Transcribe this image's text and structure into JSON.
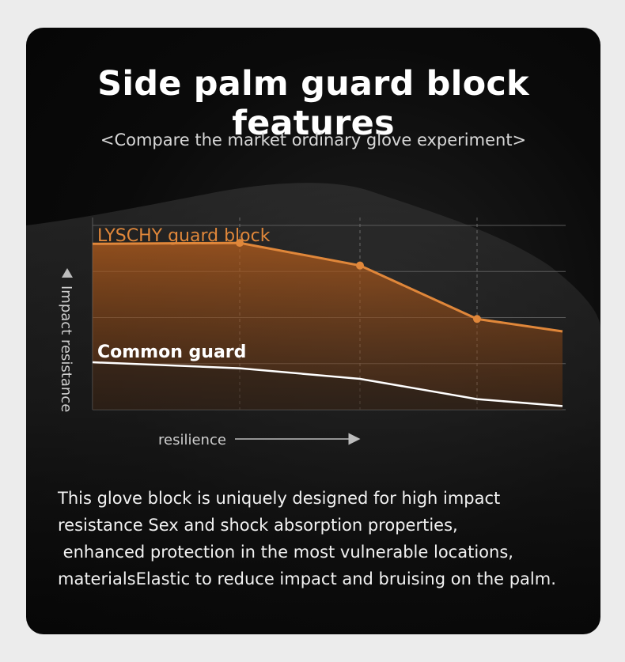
{
  "title": "Side palm guard block features",
  "subtitle": "<Compare the market ordinary glove experiment>",
  "chart_data": {
    "type": "line",
    "title": "",
    "ylabel": "Impact resistance",
    "xlabel": "resilience",
    "x": [
      0,
      1,
      2,
      3,
      4
    ],
    "ylim": [
      0,
      4
    ],
    "grid": true,
    "series": [
      {
        "name": "LYSCHY guard block",
        "color": "#e0873a",
        "values": [
          3.6,
          3.62,
          3.13,
          1.97,
          1.7
        ],
        "markers": [
          false,
          true,
          true,
          true,
          false
        ]
      },
      {
        "name": "Common guard",
        "color": "#ffffff",
        "values": [
          1.03,
          0.9,
          0.67,
          0.23,
          0.08
        ],
        "markers": [
          false,
          false,
          false,
          false,
          false
        ]
      }
    ]
  },
  "description": [
    "This glove block is uniquely designed for high impact",
    "resistance Sex and shock absorption properties,",
    " enhanced protection in the most vulnerable locations,",
    "materialsElastic to reduce impact and bruising on the palm."
  ]
}
